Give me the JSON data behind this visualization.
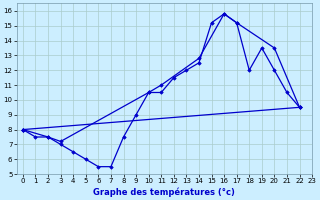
{
  "title": "Graphe des températures (°c)",
  "bg_color": "#cceeff",
  "line_color": "#0000cc",
  "grid_color": "#aacccc",
  "xlim": [
    -0.5,
    23
  ],
  "ylim": [
    5,
    16.5
  ],
  "xticks": [
    0,
    1,
    2,
    3,
    4,
    5,
    6,
    7,
    8,
    9,
    10,
    11,
    12,
    13,
    14,
    15,
    16,
    17,
    18,
    19,
    20,
    21,
    22,
    23
  ],
  "yticks": [
    5,
    6,
    7,
    8,
    9,
    10,
    11,
    12,
    13,
    14,
    15,
    16
  ],
  "series1_x": [
    0,
    1,
    2,
    3,
    4,
    5,
    6,
    7,
    8,
    9,
    10,
    11,
    12,
    13,
    14,
    15,
    16,
    17,
    18,
    19,
    20,
    21,
    22
  ],
  "series1_y": [
    8.0,
    7.5,
    7.5,
    7.0,
    6.5,
    6.0,
    5.5,
    5.5,
    7.5,
    9.0,
    10.5,
    10.5,
    11.5,
    12.0,
    12.5,
    15.2,
    15.8,
    15.2,
    12.0,
    13.5,
    12.0,
    10.5,
    9.5
  ],
  "series2_x": [
    0,
    2,
    3,
    10,
    11,
    14,
    16,
    17,
    20,
    22
  ],
  "series2_y": [
    8.0,
    7.5,
    7.2,
    10.5,
    11.0,
    12.8,
    15.8,
    15.2,
    13.5,
    9.5
  ],
  "series3_x": [
    0,
    22
  ],
  "series3_y": [
    8.0,
    9.5
  ]
}
